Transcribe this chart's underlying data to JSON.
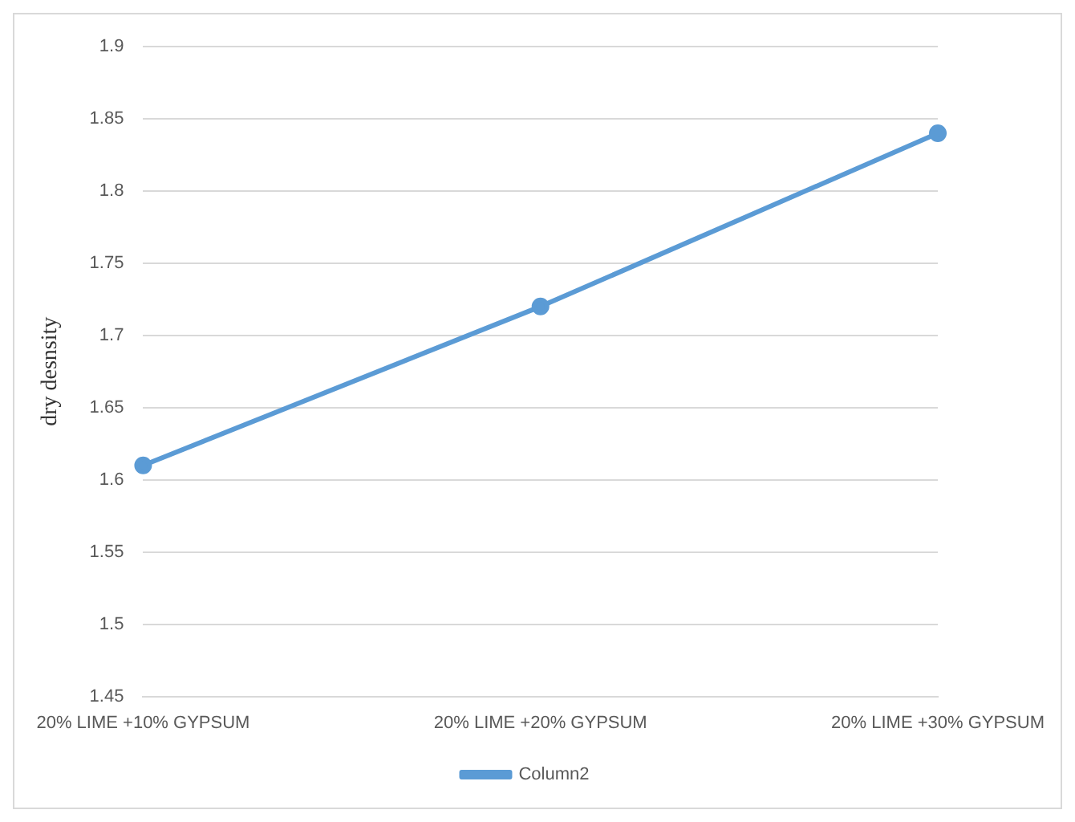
{
  "chart_data": {
    "type": "line",
    "ylabel": "dry desnsity",
    "categories": [
      "20% LIME +10% GYPSUM",
      "20% LIME +20% GYPSUM",
      "20% LIME +30% GYPSUM"
    ],
    "series": [
      {
        "name": "Column2",
        "color": "#5b9bd5",
        "values": [
          1.61,
          1.72,
          1.84
        ]
      }
    ],
    "ylim": [
      1.45,
      1.9
    ],
    "yticks": [
      1.45,
      1.5,
      1.55,
      1.6,
      1.65,
      1.7,
      1.75,
      1.8,
      1.85,
      1.9
    ],
    "grid": "y",
    "legend": "bottom",
    "marker": "circle",
    "line_style": "solid"
  }
}
